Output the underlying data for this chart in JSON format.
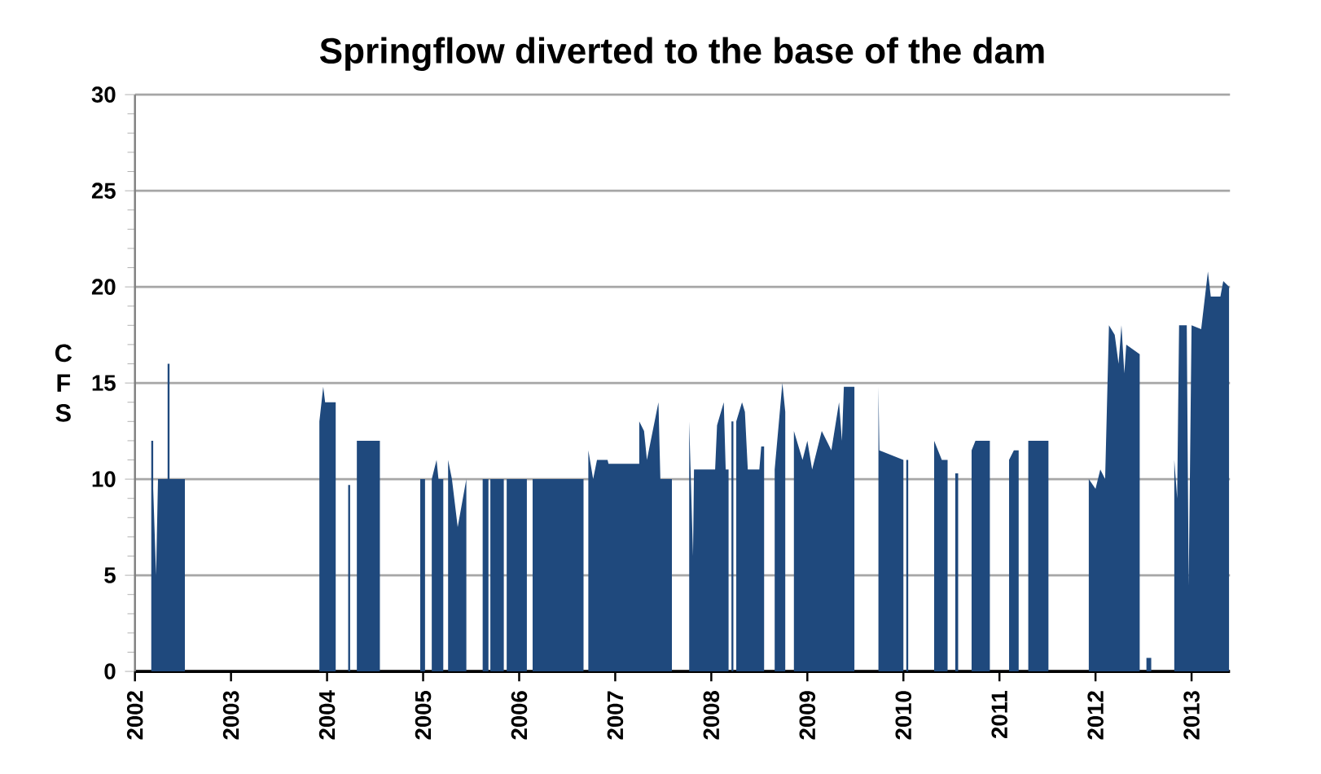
{
  "chart_data": {
    "type": "area",
    "title": "Springflow diverted to the base of the dam",
    "ylabel": "C F S",
    "xlim": [
      2002,
      2013.4
    ],
    "xticks": [
      2002,
      2003,
      2004,
      2005,
      2006,
      2007,
      2008,
      2009,
      2010,
      2011,
      2012,
      2013
    ],
    "ylim": [
      0,
      30
    ],
    "yticks": [
      0,
      5,
      10,
      15,
      20,
      25,
      30
    ],
    "grid": "y",
    "series": [
      {
        "color": "#1f497d",
        "x": [
          2002.0,
          2002.17,
          2002.17,
          2002.19,
          2002.19,
          2002.22,
          2002.24,
          2002.34,
          2002.34,
          2002.36,
          2002.36,
          2002.52,
          2002.52,
          2003.92,
          2003.92,
          2003.96,
          2003.98,
          2004.09,
          2004.09,
          2004.22,
          2004.22,
          2004.24,
          2004.24,
          2004.31,
          2004.31,
          2004.55,
          2004.55,
          2004.97,
          2004.97,
          2005.02,
          2005.02,
          2005.09,
          2005.09,
          2005.14,
          2005.16,
          2005.21,
          2005.21,
          2005.26,
          2005.26,
          2005.3,
          2005.36,
          2005.45,
          2005.45,
          2005.62,
          2005.62,
          2005.68,
          2005.68,
          2005.7,
          2005.7,
          2005.84,
          2005.84,
          2005.87,
          2005.87,
          2006.08,
          2006.08,
          2006.14,
          2006.14,
          2006.67,
          2006.67,
          2006.72,
          2006.72,
          2006.77,
          2006.81,
          2006.92,
          2006.93,
          2007.25,
          2007.25,
          2007.3,
          2007.33,
          2007.45,
          2007.47,
          2007.59,
          2007.59,
          2007.77,
          2007.77,
          2007.81,
          2007.82,
          2008.04,
          2008.06,
          2008.13,
          2008.15,
          2008.18,
          2008.18,
          2008.21,
          2008.21,
          2008.23,
          2008.23,
          2008.26,
          2008.26,
          2008.32,
          2008.35,
          2008.38,
          2008.5,
          2008.52,
          2008.55,
          2008.55,
          2008.66,
          2008.66,
          2008.74,
          2008.77,
          2008.77,
          2008.86,
          2008.86,
          2008.95,
          2009.0,
          2009.05,
          2009.15,
          2009.25,
          2009.33,
          2009.36,
          2009.38,
          2009.49,
          2009.49,
          2009.74,
          2009.74,
          2009.75,
          2010.0,
          2010.0,
          2010.03,
          2010.03,
          2010.05,
          2010.05,
          2010.32,
          2010.32,
          2010.4,
          2010.46,
          2010.46,
          2010.54,
          2010.54,
          2010.57,
          2010.57,
          2010.71,
          2010.71,
          2010.75,
          2010.9,
          2010.9,
          2011.1,
          2011.1,
          2011.15,
          2011.2,
          2011.2,
          2011.3,
          2011.3,
          2011.51,
          2011.51,
          2011.93,
          2011.93,
          2012.0,
          2012.05,
          2012.1,
          2012.14,
          2012.2,
          2012.24,
          2012.27,
          2012.3,
          2012.32,
          2012.46,
          2012.46,
          2012.53,
          2012.53,
          2012.58,
          2012.58,
          2012.82,
          2012.82,
          2012.85,
          2012.87,
          2012.95,
          2012.97,
          2013.0,
          2013.1,
          2013.17,
          2013.2,
          2013.3,
          2013.33,
          2013.39,
          2013.39
        ],
        "values": [
          0,
          0,
          12,
          12,
          9.5,
          5,
          10,
          10,
          16,
          16,
          10,
          10,
          0,
          0,
          13,
          14.8,
          14,
          14,
          0,
          0,
          9.7,
          9.7,
          0,
          0,
          12,
          12,
          0,
          0,
          10,
          10,
          0,
          0,
          10,
          11,
          10,
          10,
          0,
          0,
          11,
          10,
          7.5,
          10,
          0,
          0,
          10,
          10,
          0,
          0,
          10,
          10,
          0,
          0,
          10,
          10,
          0,
          0,
          10,
          10,
          0,
          0,
          11.5,
          10,
          11,
          11,
          10.8,
          10.8,
          13,
          12.5,
          11,
          14,
          10,
          10,
          0,
          0,
          13,
          6,
          10.5,
          10.5,
          12.8,
          14,
          10.5,
          10.5,
          0,
          0,
          13,
          13,
          0,
          0,
          13,
          14,
          13.5,
          10.5,
          10.5,
          11.7,
          11.7,
          0,
          0,
          10.5,
          15,
          13.5,
          0,
          0,
          12.5,
          11,
          12,
          10.5,
          12.5,
          11.5,
          14,
          12,
          14.8,
          14.8,
          0,
          0,
          14.8,
          11.5,
          11,
          0,
          0,
          11,
          11,
          0,
          0,
          12,
          11,
          11,
          0,
          0,
          10.3,
          10.3,
          0,
          0,
          11.5,
          12,
          12,
          0,
          0,
          11,
          11.5,
          11.5,
          0,
          0,
          12,
          12,
          0,
          0,
          10,
          9.5,
          10.5,
          10,
          18,
          17.5,
          16,
          18,
          15.5,
          17,
          16.5,
          0,
          0,
          0.7,
          0.7,
          0,
          0,
          11,
          9,
          18,
          18,
          4.5,
          18,
          17.8,
          20.8,
          19.5,
          19.5,
          20.3,
          20,
          0
        ]
      }
    ]
  }
}
